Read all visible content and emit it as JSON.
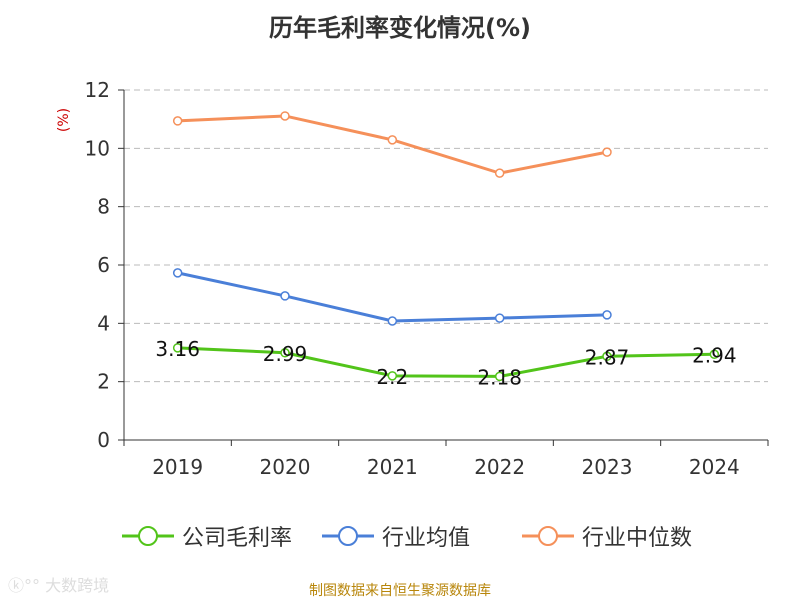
{
  "chart_data": {
    "type": "line",
    "title": "历年毛利率变化情况(%)",
    "ylabel": "(%)",
    "categories": [
      "2019",
      "2020",
      "2021",
      "2022",
      "2023",
      "2024"
    ],
    "ylim": [
      0,
      12
    ],
    "yticks": [
      0,
      2,
      4,
      6,
      8,
      10,
      12
    ],
    "grid": true,
    "legend_position": "bottom",
    "series": [
      {
        "name": "公司毛利率",
        "color": "#52c41a",
        "values": [
          3.16,
          2.99,
          2.2,
          2.18,
          2.87,
          2.94
        ],
        "labels": [
          "3.16",
          "2.99",
          "2.2",
          "2.18",
          "2.87",
          "2.94"
        ]
      },
      {
        "name": "行业均值",
        "color": "#4a7fd8",
        "values": [
          5.73,
          4.94,
          4.08,
          4.18,
          4.29,
          null
        ]
      },
      {
        "name": "行业中位数",
        "color": "#f5905a",
        "values": [
          10.94,
          11.11,
          10.29,
          9.15,
          9.87,
          null
        ]
      }
    ]
  },
  "source": "制图数据来自恒生聚源数据库",
  "watermark": "大数跨境"
}
